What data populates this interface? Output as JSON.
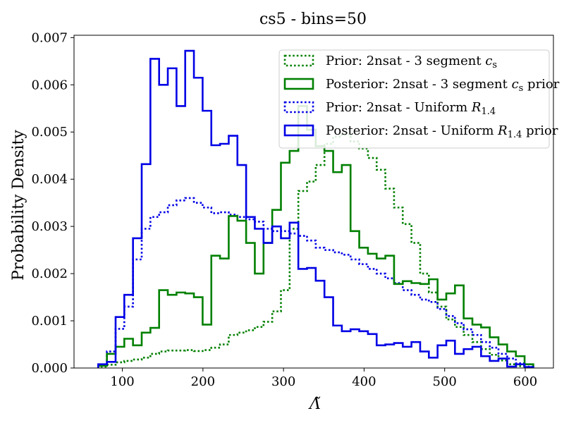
{
  "chart_data": {
    "type": "histogram",
    "title": "cs5 - bins=50",
    "xlabel": "Λ̃",
    "ylabel": "Probability Density",
    "xlim": [
      40,
      635
    ],
    "ylim": [
      0,
      0.00705
    ],
    "x_ticks": [
      100,
      200,
      300,
      400,
      500,
      600
    ],
    "y_ticks": [
      0.0,
      0.001,
      0.002,
      0.003,
      0.004,
      0.005,
      0.006,
      0.007
    ],
    "y_tick_labels": [
      "0.000",
      "0.001",
      "0.002",
      "0.003",
      "0.004",
      "0.005",
      "0.006",
      "0.007"
    ],
    "x_tick_labels": [
      "100",
      "200",
      "300",
      "400",
      "500",
      "600"
    ],
    "legend_position": "top-right",
    "series": [
      {
        "name": "Prior: 2nsat - 3 segment cs",
        "legend_main": "Prior: 2nsat - 3 segment ",
        "legend_italic": "c",
        "legend_sub": "s",
        "legend_tail": "",
        "color": "#008000",
        "style": "dotted",
        "bin_start": 70,
        "bin_width": 10.8,
        "values": [
          3e-05,
          7e-05,
          0.00012,
          0.00015,
          0.00018,
          0.00022,
          0.0003,
          0.00035,
          0.00037,
          0.00037,
          0.00038,
          0.00036,
          0.00038,
          0.00043,
          0.0005,
          0.0007,
          0.00075,
          0.0008,
          0.00087,
          0.00098,
          0.0012,
          0.00165,
          0.00295,
          0.00375,
          0.00395,
          0.0043,
          0.00475,
          0.0049,
          0.00495,
          0.0048,
          0.00465,
          0.00445,
          0.0042,
          0.0038,
          0.0034,
          0.00305,
          0.00265,
          0.002,
          0.0016,
          0.0013,
          0.00103,
          0.00087,
          0.0007,
          0.00055,
          0.0004,
          0.00028,
          0.00016,
          8e-05,
          4e-05,
          2e-05
        ]
      },
      {
        "name": "Posterior: 2nsat - 3 segment cs prior",
        "legend_main": "Posterior: 2nsat - 3 segment ",
        "legend_italic": "c",
        "legend_sub": "s",
        "legend_tail": " prior",
        "color": "#008000",
        "style": "solid",
        "bin_start": 70,
        "bin_width": 10.8,
        "values": [
          5e-05,
          0.0003,
          0.00045,
          0.00062,
          0.00048,
          0.00075,
          0.00085,
          0.00165,
          0.00155,
          0.0016,
          0.00158,
          0.0015,
          0.00092,
          0.00238,
          0.00232,
          0.00322,
          0.00312,
          0.00265,
          0.002,
          0.00265,
          0.00335,
          0.00435,
          0.0046,
          0.00555,
          0.00505,
          0.0047,
          0.0046,
          0.00415,
          0.0043,
          0.0029,
          0.00255,
          0.00242,
          0.00232,
          0.00238,
          0.00178,
          0.00184,
          0.0018,
          0.00178,
          0.00188,
          0.00145,
          0.00158,
          0.00175,
          0.00105,
          0.00092,
          0.00086,
          0.00065,
          0.0005,
          0.00035,
          0.00025,
          8e-05
        ]
      },
      {
        "name": "Prior: 2nsat - Uniform R1.4",
        "legend_main": "Prior: 2nsat - Uniform ",
        "legend_italic": "R",
        "legend_sub": "1.4",
        "legend_tail": "",
        "color": "#0000e6",
        "style": "dotted",
        "bin_start": 70,
        "bin_width": 10.8,
        "values": [
          5e-05,
          0.00035,
          0.00083,
          0.0013,
          0.0023,
          0.00295,
          0.0032,
          0.0033,
          0.00345,
          0.00355,
          0.0036,
          0.0035,
          0.0034,
          0.00328,
          0.0033,
          0.00325,
          0.0032,
          0.00315,
          0.0031,
          0.00295,
          0.0029,
          0.0029,
          0.00285,
          0.0028,
          0.0027,
          0.00255,
          0.0025,
          0.00245,
          0.0024,
          0.0023,
          0.0022,
          0.0021,
          0.002,
          0.0019,
          0.0018,
          0.00165,
          0.00155,
          0.00145,
          0.0014,
          0.00125,
          0.0011,
          0.00095,
          0.00082,
          0.0007,
          0.00055,
          0.00043,
          0.0003,
          0.0002,
          0.0001,
          3e-05
        ]
      },
      {
        "name": "Posterior: 2nsat - Uniform R1.4 prior",
        "legend_main": "Posterior: 2nsat - Uniform ",
        "legend_italic": "R",
        "legend_sub": "1.4",
        "legend_tail": " prior",
        "color": "#0000e6",
        "style": "solid",
        "bin_start": 70,
        "bin_width": 10.8,
        "values": [
          8e-05,
          0.00013,
          0.00108,
          0.00155,
          0.00275,
          0.00432,
          0.00655,
          0.006,
          0.00635,
          0.00555,
          0.00672,
          0.00615,
          0.00545,
          0.00472,
          0.00475,
          0.00492,
          0.0043,
          0.0032,
          0.00295,
          0.00265,
          0.003,
          0.00275,
          0.00308,
          0.0021,
          0.00212,
          0.00185,
          0.0015,
          0.0009,
          0.00078,
          0.00082,
          0.00078,
          0.00072,
          0.00048,
          0.0005,
          0.00053,
          0.00045,
          0.00055,
          0.00035,
          0.00022,
          0.00048,
          0.00058,
          0.0003,
          0.0004,
          0.00045,
          0.00025,
          0.00015,
          0.0002,
          3e-05,
          8e-05,
          2e-05
        ]
      }
    ]
  }
}
